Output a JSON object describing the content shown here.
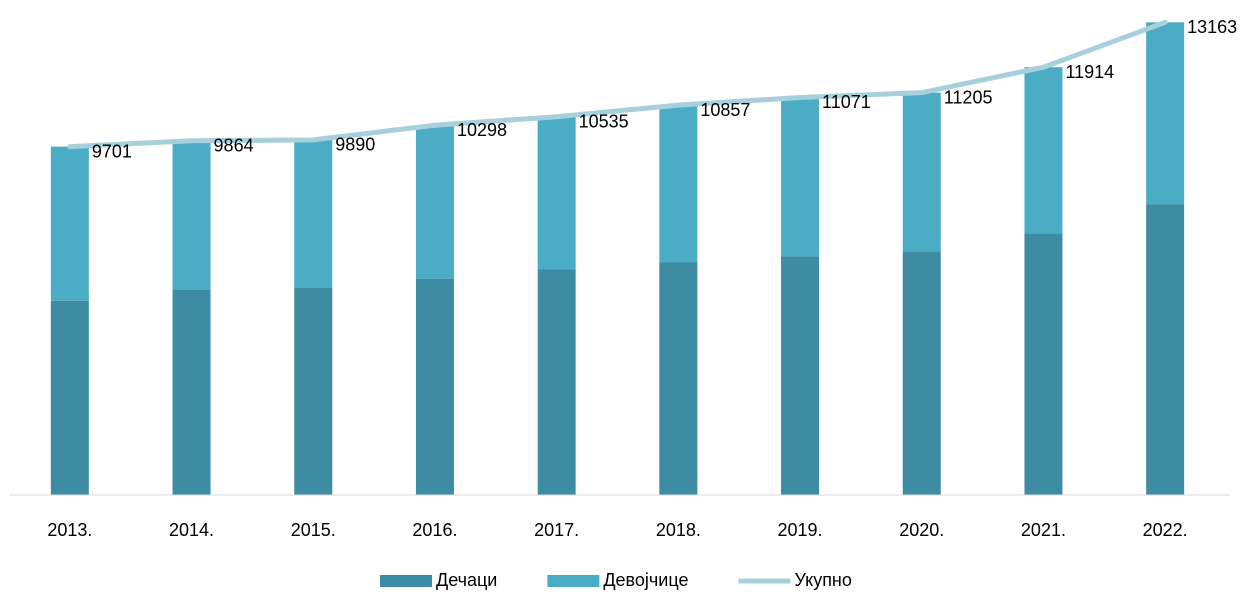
{
  "chart_data": {
    "type": "bar",
    "stacked": true,
    "categories": [
      "2013.",
      "2014.",
      "2015.",
      "2016.",
      "2017.",
      "2018.",
      "2019.",
      "2020.",
      "2021.",
      "2022."
    ],
    "series": [
      {
        "name": "Дечаци",
        "color": "#3d8ca3",
        "values": [
          5410,
          5720,
          5775,
          6025,
          6280,
          6475,
          6645,
          6785,
          7290,
          8100
        ]
      },
      {
        "name": "Девојчице",
        "color": "#4bacc6",
        "values": [
          4291,
          4144,
          4115,
          4273,
          4255,
          4382,
          4426,
          4420,
          4624,
          5063
        ]
      },
      {
        "name": "Укупно",
        "type": "line",
        "color": "#a8d0dc",
        "values": [
          9701,
          9864,
          9890,
          10298,
          10535,
          10857,
          11071,
          11205,
          11914,
          13163
        ]
      }
    ],
    "ylim": [
      0,
      13200
    ],
    "legend": "bottom"
  }
}
